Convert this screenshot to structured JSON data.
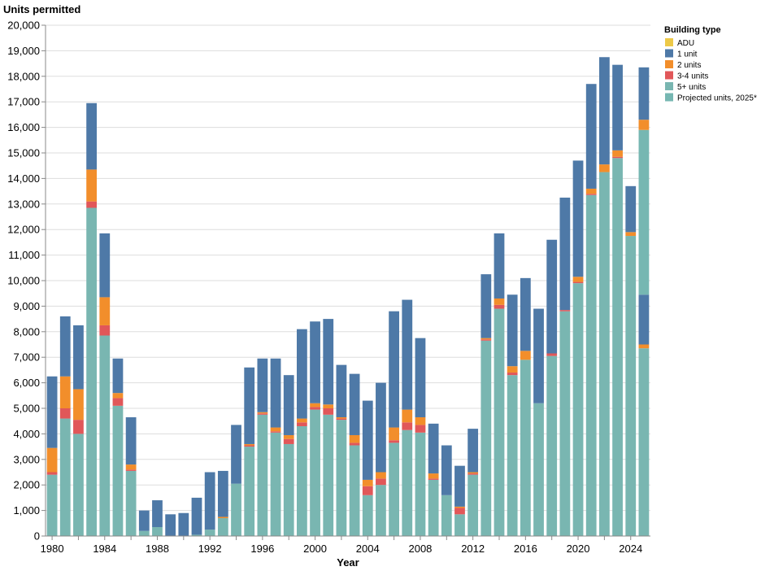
{
  "chart_data": {
    "type": "bar",
    "stacked": true,
    "title": "",
    "xlabel": "Year",
    "ylabel": "Units permitted",
    "ylim": [
      0,
      20000
    ],
    "y_ticks": [
      0,
      1000,
      2000,
      3000,
      4000,
      5000,
      6000,
      7000,
      8000,
      9000,
      10000,
      11000,
      12000,
      13000,
      14000,
      15000,
      16000,
      17000,
      18000,
      19000,
      20000
    ],
    "y_tick_labels": [
      "0",
      "1,000",
      "2,000",
      "3,000",
      "4,000",
      "5,000",
      "6,000",
      "7,000",
      "8,000",
      "9,000",
      "10,000",
      "11,000",
      "12,000",
      "13,000",
      "14,000",
      "15,000",
      "16,000",
      "17,000",
      "18,000",
      "19,000",
      "20,000"
    ],
    "x_tick_labels": [
      "1980",
      "1984",
      "1988",
      "1992",
      "1996",
      "2000",
      "2004",
      "2008",
      "2012",
      "2016",
      "2020",
      "2024"
    ],
    "categories": [
      "1980",
      "1981",
      "1982",
      "1983",
      "1984",
      "1985",
      "1986",
      "1987",
      "1988",
      "1989",
      "1990",
      "1991",
      "1992",
      "1993",
      "1994",
      "1995",
      "1996",
      "1997",
      "1998",
      "1999",
      "2000",
      "2001",
      "2002",
      "2003",
      "2004",
      "2005",
      "2006",
      "2007",
      "2008",
      "2009",
      "2010",
      "2011",
      "2012",
      "2013",
      "2014",
      "2015",
      "2016",
      "2017",
      "2018",
      "2019",
      "2020",
      "2021",
      "2022",
      "2023",
      "2024",
      "2025"
    ],
    "legend_title": "Building type",
    "legend_position": "top-right",
    "series": [
      {
        "name": "5+ units",
        "color": "#79b6b1",
        "values": [
          2400,
          4600,
          4000,
          12850,
          7850,
          5100,
          2550,
          200,
          350,
          0,
          0,
          50,
          250,
          700,
          2050,
          3500,
          4750,
          4050,
          3600,
          4300,
          4950,
          4750,
          4550,
          3550,
          1600,
          2000,
          3650,
          4150,
          4050,
          2200,
          1600,
          850,
          2400,
          7650,
          8900,
          6300,
          6900,
          5200,
          7050,
          8800,
          9900,
          13350,
          14250,
          14800,
          11750,
          7350
        ]
      },
      {
        "name": "3-4 units",
        "color": "#e15759",
        "values": [
          100,
          400,
          550,
          250,
          400,
          300,
          50,
          0,
          0,
          0,
          0,
          0,
          0,
          0,
          0,
          50,
          50,
          50,
          200,
          150,
          100,
          250,
          50,
          100,
          350,
          250,
          100,
          300,
          300,
          50,
          0,
          250,
          50,
          50,
          150,
          100,
          0,
          0,
          100,
          50,
          50,
          50,
          0,
          50,
          0,
          0
        ]
      },
      {
        "name": "2 units",
        "color": "#f28e2b",
        "values": [
          950,
          1250,
          1200,
          1250,
          1100,
          200,
          200,
          0,
          0,
          0,
          0,
          0,
          0,
          50,
          0,
          50,
          50,
          150,
          150,
          150,
          150,
          150,
          50,
          300,
          250,
          250,
          500,
          500,
          300,
          200,
          0,
          50,
          50,
          50,
          250,
          250,
          350,
          0,
          0,
          0,
          200,
          200,
          300,
          250,
          150,
          150
        ]
      },
      {
        "name": "1 unit",
        "color": "#4e79a7",
        "values": [
          2800,
          2350,
          2500,
          2600,
          2500,
          1350,
          1850,
          800,
          1050,
          850,
          900,
          1450,
          2250,
          1800,
          2300,
          3000,
          2100,
          2700,
          2350,
          3500,
          3200,
          3350,
          2050,
          2400,
          3100,
          3500,
          4550,
          4300,
          3100,
          1950,
          1950,
          1600,
          1700,
          2500,
          2550,
          2800,
          2850,
          3700,
          4450,
          4400,
          4550,
          4100,
          4200,
          3350,
          1800,
          1950
        ]
      },
      {
        "name": "ADU",
        "color": "#edc948",
        "values": [
          0,
          0,
          0,
          0,
          0,
          0,
          0,
          0,
          0,
          0,
          0,
          0,
          0,
          0,
          0,
          0,
          0,
          0,
          0,
          0,
          0,
          0,
          0,
          0,
          0,
          0,
          0,
          0,
          0,
          0,
          0,
          0,
          0,
          0,
          0,
          0,
          0,
          0,
          0,
          0,
          0,
          0,
          0,
          0,
          0,
          0
        ]
      },
      {
        "name": "Projected units, 2025*",
        "color": "#76b7b2",
        "values": [
          0,
          0,
          0,
          0,
          0,
          0,
          0,
          0,
          0,
          0,
          0,
          0,
          0,
          0,
          0,
          0,
          0,
          0,
          0,
          0,
          0,
          0,
          0,
          0,
          0,
          0,
          0,
          0,
          0,
          0,
          0,
          0,
          0,
          0,
          0,
          0,
          0,
          0,
          0,
          0,
          0,
          0,
          0,
          0,
          0,
          6450
        ]
      }
    ],
    "projected_extra_2025": [
      {
        "name": "2 units",
        "value": 400
      },
      {
        "name": "1 unit",
        "value": 2050
      }
    ],
    "legend_items": [
      {
        "name": "ADU",
        "color": "#edc948"
      },
      {
        "name": "1 unit",
        "color": "#4e79a7"
      },
      {
        "name": "2 units",
        "color": "#f28e2b"
      },
      {
        "name": "3-4 units",
        "color": "#e15759"
      },
      {
        "name": "5+ units",
        "color": "#79b6b1"
      },
      {
        "name": "Projected units, 2025*",
        "color": "#76b7b2"
      }
    ],
    "grid": true
  }
}
